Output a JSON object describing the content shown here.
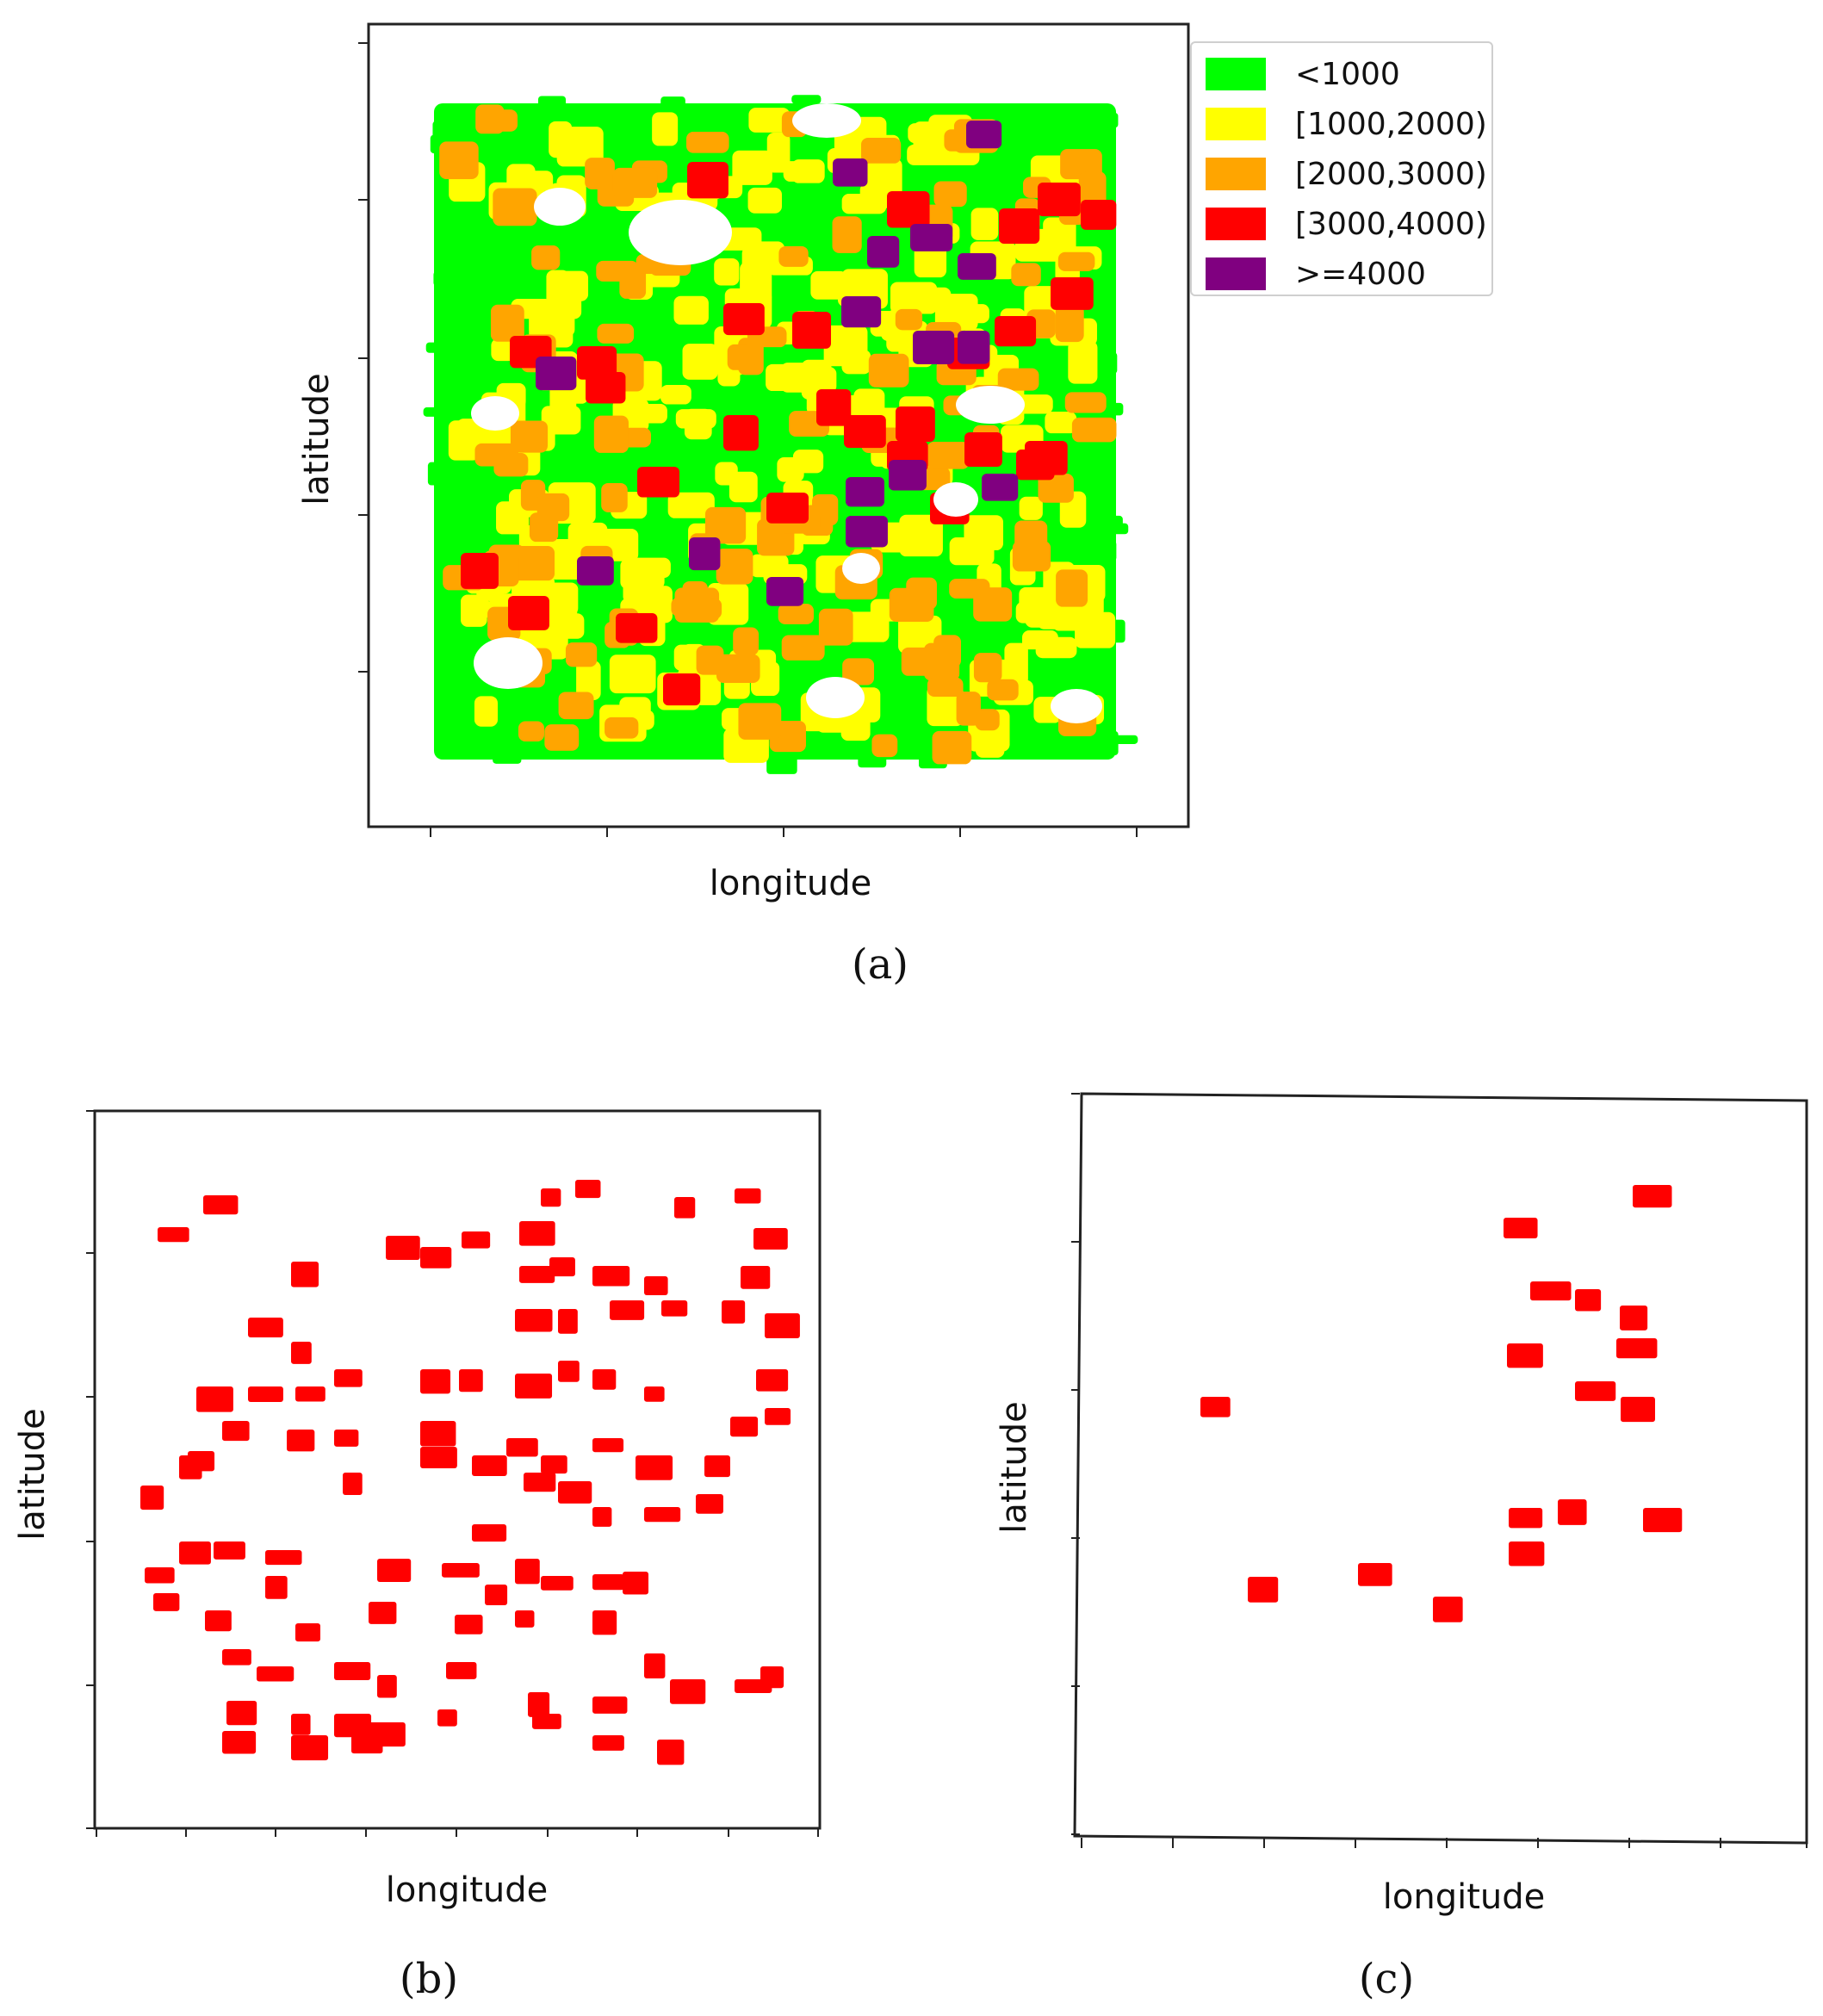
{
  "panels": [
    {
      "id": "a",
      "caption": "(a)",
      "xlabel": "longitude",
      "ylabel": "latitude",
      "legend": [
        {
          "label": "<1000",
          "color": "#00ff00"
        },
        {
          "label": "[1000,2000)",
          "color": "#ffff00"
        },
        {
          "label": "[2000,3000)",
          "color": "#ffa500"
        },
        {
          "label": "[3000,4000)",
          "color": "#ff0000"
        },
        {
          "label": ">=4000",
          "color": "#800080"
        }
      ]
    },
    {
      "id": "b",
      "caption": "(b)",
      "xlabel": "longitude",
      "ylabel": "latitude",
      "point_color": "#ff0000"
    },
    {
      "id": "c",
      "caption": "(c)",
      "xlabel": "longitude",
      "ylabel": "latitude",
      "point_color": "#ff0000"
    }
  ]
}
